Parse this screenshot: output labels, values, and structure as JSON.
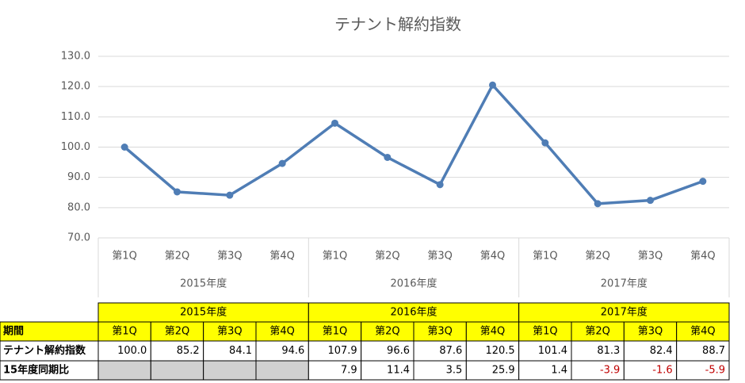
{
  "chart_data": {
    "type": "line",
    "title": "テナント解約指数",
    "categories": [
      "第1Q",
      "第2Q",
      "第3Q",
      "第4Q",
      "第1Q",
      "第2Q",
      "第3Q",
      "第4Q",
      "第1Q",
      "第2Q",
      "第3Q",
      "第4Q"
    ],
    "groups": [
      "2015年度",
      "2016年度",
      "2017年度"
    ],
    "series": [
      {
        "color": "#4f7db5",
        "values": [
          100.0,
          85.2,
          84.1,
          94.6,
          107.9,
          96.6,
          87.6,
          120.5,
          101.4,
          81.3,
          82.4,
          88.7
        ]
      }
    ],
    "ylim": [
      70,
      130
    ],
    "yticks": [
      {
        "value": 70,
        "label": "70.0"
      },
      {
        "value": 80,
        "label": "80.0"
      },
      {
        "value": 90,
        "label": "90.0"
      },
      {
        "value": 100,
        "label": "100.0"
      },
      {
        "value": 110,
        "label": "110.0"
      },
      {
        "value": 120,
        "label": "120.0"
      },
      {
        "value": 130,
        "label": "130.0"
      }
    ],
    "grid": true
  },
  "table": {
    "header": [
      "2015年度",
      "2016年度",
      "2017年度"
    ],
    "rows": [
      [
        "期間",
        "第1Q",
        "第2Q",
        "第3Q",
        "第4Q",
        "第1Q",
        "第2Q",
        "第3Q",
        "第4Q",
        "第1Q",
        "第2Q",
        "第3Q",
        "第4Q"
      ],
      [
        "テナント解約指数",
        "100.0",
        "85.2",
        "84.1",
        "94.6",
        "107.9",
        "96.6",
        "87.6",
        "120.5",
        "101.4",
        "81.3",
        "82.4",
        "88.7"
      ],
      [
        "15年度同期比",
        null,
        null,
        null,
        null,
        "7.9",
        "11.4",
        "3.5",
        "25.9",
        "1.4",
        "-3.9",
        "-1.6",
        "-5.9"
      ]
    ],
    "highlight_color": "#ffff00",
    "blank_color": "#d0d0d0",
    "negative_color": "#c00000"
  }
}
